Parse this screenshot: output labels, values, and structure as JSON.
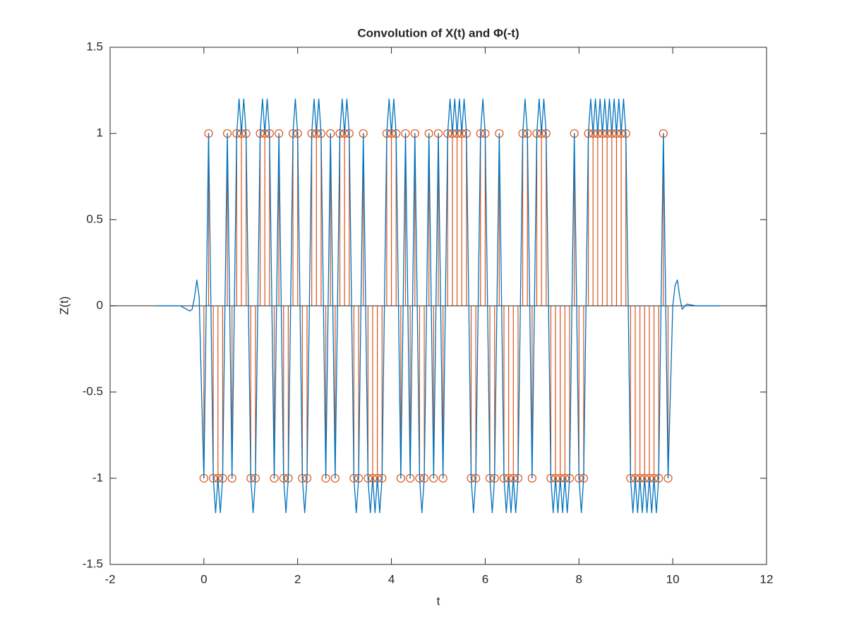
{
  "chart_data": {
    "type": "line",
    "title": "Convolution of X(t) and Φ(-t)",
    "xlabel": "t",
    "ylabel": "Z(t)",
    "xlim": [
      -2,
      12
    ],
    "xticks": [
      -2,
      0,
      2,
      4,
      6,
      8,
      10,
      12
    ],
    "ylim": [
      -1.5,
      1.5
    ],
    "yticks": [
      -1.5,
      -1,
      -0.5,
      0,
      0.5,
      1,
      1.5
    ],
    "series": [
      {
        "kind": "line",
        "color": "#0072bd",
        "x": [
          -1,
          -0.5,
          -0.3,
          -0.25,
          -0.2,
          -0.15,
          -0.1,
          -0.05,
          0,
          0.05,
          0.1,
          0.15,
          0.2,
          0.25,
          0.3,
          0.35,
          0.4,
          0.45,
          0.5,
          0.55,
          0.6,
          0.65,
          0.7,
          0.75,
          0.8,
          0.85,
          0.9,
          0.95,
          1,
          1.05,
          1.1,
          1.15,
          1.2,
          1.25,
          1.3,
          1.35,
          1.4,
          1.45,
          1.5,
          1.55,
          1.6,
          1.65,
          1.7,
          1.75,
          1.8,
          1.85,
          1.9,
          1.95,
          2,
          2.05,
          2.1,
          2.15,
          2.2,
          2.25,
          2.3,
          2.35,
          2.4,
          2.45,
          2.5,
          2.55,
          2.6,
          2.65,
          2.7,
          2.75,
          2.8,
          2.85,
          2.9,
          2.95,
          3,
          3.05,
          3.1,
          3.15,
          3.2,
          3.25,
          3.3,
          3.35,
          3.4,
          3.45,
          3.5,
          3.55,
          3.6,
          3.65,
          3.7,
          3.75,
          3.8,
          3.85,
          3.9,
          3.95,
          4,
          4.05,
          4.1,
          4.15,
          4.2,
          4.25,
          4.3,
          4.35,
          4.4,
          4.45,
          4.5,
          4.55,
          4.6,
          4.65,
          4.7,
          4.75,
          4.8,
          4.85,
          4.9,
          4.95,
          5,
          5.05,
          5.1,
          5.15,
          5.2,
          5.25,
          5.3,
          5.35,
          5.4,
          5.45,
          5.5,
          5.55,
          5.6,
          5.65,
          5.7,
          5.75,
          5.8,
          5.85,
          5.9,
          5.95,
          6,
          6.05,
          6.1,
          6.15,
          6.2,
          6.25,
          6.3,
          6.35,
          6.4,
          6.45,
          6.5,
          6.55,
          6.6,
          6.65,
          6.7,
          6.75,
          6.8,
          6.85,
          6.9,
          6.95,
          7,
          7.05,
          7.1,
          7.15,
          7.2,
          7.25,
          7.3,
          7.35,
          7.4,
          7.45,
          7.5,
          7.55,
          7.6,
          7.65,
          7.7,
          7.75,
          7.8,
          7.85,
          7.9,
          7.95,
          8,
          8.05,
          8.1,
          8.15,
          8.2,
          8.25,
          8.3,
          8.35,
          8.4,
          8.45,
          8.5,
          8.55,
          8.6,
          8.65,
          8.7,
          8.75,
          8.8,
          8.85,
          8.9,
          8.95,
          9,
          9.05,
          9.1,
          9.15,
          9.2,
          9.25,
          9.3,
          9.35,
          9.4,
          9.45,
          9.5,
          9.55,
          9.6,
          9.65,
          9.7,
          9.75,
          9.8,
          9.85,
          9.9,
          9.95,
          10,
          10.05,
          10.1,
          10.15,
          10.2,
          10.3,
          10.5,
          11
        ],
        "values": [
          0,
          0,
          -0.03,
          -0.02,
          0.05,
          0.15,
          0.05,
          -0.5,
          -1,
          0,
          1,
          0,
          -1,
          -1.2,
          -1,
          -1.2,
          -1,
          0,
          1,
          0,
          -1,
          0,
          1,
          1.2,
          1,
          1.2,
          1,
          0,
          -1,
          -1.2,
          -1,
          0,
          1,
          1.2,
          1,
          1.2,
          1,
          0,
          -1,
          0,
          1,
          0,
          -1,
          -1.2,
          -1,
          0,
          1,
          1.2,
          1,
          0,
          -1,
          -1.2,
          -1,
          0,
          1,
          1.2,
          1,
          1.2,
          1,
          0,
          -1,
          0,
          1,
          0,
          -1,
          0,
          1,
          1.2,
          1,
          1.2,
          1,
          0,
          -1,
          -1.2,
          -1,
          0,
          1,
          0,
          -1,
          -1.2,
          -1,
          -1.2,
          -1,
          -1.2,
          -1,
          0,
          1,
          1.2,
          1,
          1.2,
          1,
          0,
          -1,
          0,
          1,
          0,
          -1,
          0,
          1,
          0,
          -1,
          -1.2,
          -1,
          0,
          1,
          0,
          -1,
          0,
          1,
          0,
          -1,
          0,
          1,
          1.2,
          1,
          1.2,
          1,
          1.2,
          1,
          1.2,
          1,
          0,
          -1,
          -1.2,
          -1,
          0,
          1,
          1.2,
          1,
          0,
          -1,
          -1.2,
          -1,
          0,
          1,
          0,
          -1,
          -1.2,
          -1,
          -1.2,
          -1,
          -1.2,
          -1,
          0,
          1,
          1.2,
          1,
          0,
          -1,
          0,
          1,
          1.2,
          1,
          1.2,
          1,
          0,
          -1,
          -1.2,
          -1,
          -1.2,
          -1,
          -1.2,
          -1,
          -1.2,
          -1,
          0,
          1,
          0,
          -1,
          -1.2,
          -1,
          0,
          1,
          1.2,
          1,
          1.2,
          1,
          1.2,
          1,
          1.2,
          1,
          1.2,
          1,
          1.2,
          1,
          1.2,
          1,
          1.2,
          1,
          0,
          -1,
          -1.2,
          -1,
          -1.2,
          -1,
          -1.2,
          -1,
          -1.2,
          -1,
          -1.2,
          -1,
          -1.2,
          -1,
          0,
          1,
          0,
          -1,
          -0.5,
          0,
          0.12,
          0.15,
          0.05,
          -0.02,
          0.01,
          0,
          0
        ]
      },
      {
        "kind": "stem",
        "color": "#d95319",
        "baseline_color": "#555555",
        "x": [
          0,
          0.1,
          0.2,
          0.3,
          0.4,
          0.5,
          0.6,
          0.7,
          0.8,
          0.9,
          1,
          1.1,
          1.2,
          1.3,
          1.4,
          1.5,
          1.6,
          1.7,
          1.8,
          1.9,
          2,
          2.1,
          2.2,
          2.3,
          2.4,
          2.5,
          2.6,
          2.7,
          2.8,
          2.9,
          3,
          3.1,
          3.2,
          3.3,
          3.4,
          3.5,
          3.6,
          3.7,
          3.8,
          3.9,
          4,
          4.1,
          4.2,
          4.3,
          4.4,
          4.5,
          4.6,
          4.7,
          4.8,
          4.9,
          5,
          5.1,
          5.2,
          5.3,
          5.4,
          5.5,
          5.6,
          5.7,
          5.8,
          5.9,
          6,
          6.1,
          6.2,
          6.3,
          6.4,
          6.5,
          6.6,
          6.7,
          6.8,
          6.9,
          7,
          7.1,
          7.2,
          7.3,
          7.4,
          7.5,
          7.6,
          7.7,
          7.8,
          7.9,
          8,
          8.1,
          8.2,
          8.3,
          8.4,
          8.5,
          8.6,
          8.7,
          8.8,
          8.9,
          9,
          9.1,
          9.2,
          9.3,
          9.4,
          9.5,
          9.6,
          9.7,
          9.8,
          9.9
        ],
        "values": [
          -1,
          1,
          -1,
          -1,
          -1,
          1,
          -1,
          1,
          1,
          1,
          -1,
          -1,
          1,
          1,
          1,
          -1,
          1,
          -1,
          -1,
          1,
          1,
          -1,
          -1,
          1,
          1,
          1,
          -1,
          1,
          -1,
          1,
          1,
          1,
          -1,
          -1,
          1,
          -1,
          -1,
          -1,
          -1,
          1,
          1,
          1,
          -1,
          1,
          -1,
          1,
          -1,
          -1,
          1,
          -1,
          1,
          -1,
          1,
          1,
          1,
          1,
          1,
          -1,
          -1,
          1,
          1,
          -1,
          -1,
          1,
          -1,
          -1,
          -1,
          -1,
          1,
          1,
          -1,
          1,
          1,
          1,
          -1,
          -1,
          -1,
          -1,
          -1,
          1,
          -1,
          -1,
          1,
          1,
          1,
          1,
          1,
          1,
          1,
          1,
          1,
          -1,
          -1,
          -1,
          -1,
          -1,
          -1,
          -1,
          1,
          -1
        ]
      }
    ]
  }
}
